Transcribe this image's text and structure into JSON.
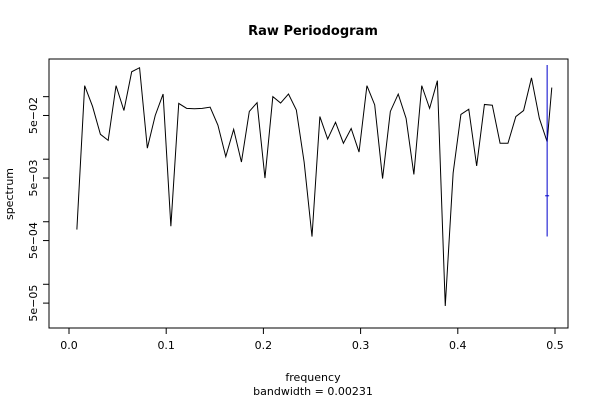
{
  "chart_data": {
    "type": "line",
    "title": "Raw Periodogram",
    "xlabel": "frequency",
    "xlabel_sub": "bandwidth = 0.00231",
    "ylabel": "spectrum",
    "y_scale": "log",
    "xlim": [
      0.0,
      0.5
    ],
    "ylim": [
      2e-05,
      0.4
    ],
    "x_ticks": [
      0.0,
      0.1,
      0.2,
      0.3,
      0.4,
      0.5
    ],
    "x_tick_labels": [
      "0.0",
      "0.1",
      "0.2",
      "0.3",
      "0.4",
      "0.5"
    ],
    "y_ticks": [
      5e-05,
      0.0005,
      0.005,
      0.05
    ],
    "y_tick_labels": [
      "5e−05",
      "5e−04",
      "5e−03",
      "5e−02"
    ],
    "grid": false,
    "series": [
      {
        "color": "#000000",
        "x": [
          0.0081,
          0.0161,
          0.0242,
          0.0323,
          0.0403,
          0.0484,
          0.0565,
          0.0645,
          0.0726,
          0.0806,
          0.0887,
          0.0968,
          0.1048,
          0.1129,
          0.121,
          0.129,
          0.1371,
          0.1452,
          0.1532,
          0.1613,
          0.1694,
          0.1774,
          0.1855,
          0.1935,
          0.2016,
          0.2097,
          0.2177,
          0.2258,
          0.2339,
          0.2419,
          0.25,
          0.2581,
          0.2661,
          0.2742,
          0.2823,
          0.2903,
          0.2984,
          0.3065,
          0.3145,
          0.3226,
          0.3306,
          0.3387,
          0.3468,
          0.3548,
          0.3629,
          0.371,
          0.379,
          0.3871,
          0.3952,
          0.4032,
          0.4113,
          0.4194,
          0.4274,
          0.4355,
          0.4435,
          0.4516,
          0.4597,
          0.4677,
          0.4758,
          0.4839,
          0.4919
        ],
        "values": [
          0.00075,
          0.15,
          0.07,
          0.025,
          0.02,
          0.15,
          0.06,
          0.25,
          0.29,
          0.015,
          0.05,
          0.11,
          0.00085,
          0.078,
          0.065,
          0.064,
          0.065,
          0.068,
          0.035,
          0.011,
          0.03,
          0.009,
          0.058,
          0.08,
          0.005,
          0.1,
          0.079,
          0.11,
          0.061,
          0.009,
          0.00058,
          0.048,
          0.021,
          0.039,
          0.018,
          0.031,
          0.013,
          0.15,
          0.074,
          0.0049,
          0.058,
          0.11,
          0.045,
          0.0057,
          0.15,
          0.065,
          0.18,
          4.5e-05,
          0.006,
          0.052,
          0.063,
          0.0078,
          0.075,
          0.073,
          0.018,
          0.018,
          0.048,
          0.06,
          0.2,
          0.045,
          0.019
        ]
      },
      {
        "color": "#000000",
        "x": [
          0.4919,
          0.4967
        ],
        "values": [
          0.019,
          0.14
        ]
      },
      {
        "color": "#0000cc",
        "x": [
          0.4919,
          0.4919
        ],
        "values": [
          0.00058,
          0.32
        ]
      }
    ],
    "marker": {
      "x": 0.4919,
      "value": 0.0026,
      "color": "#0000cc"
    }
  }
}
